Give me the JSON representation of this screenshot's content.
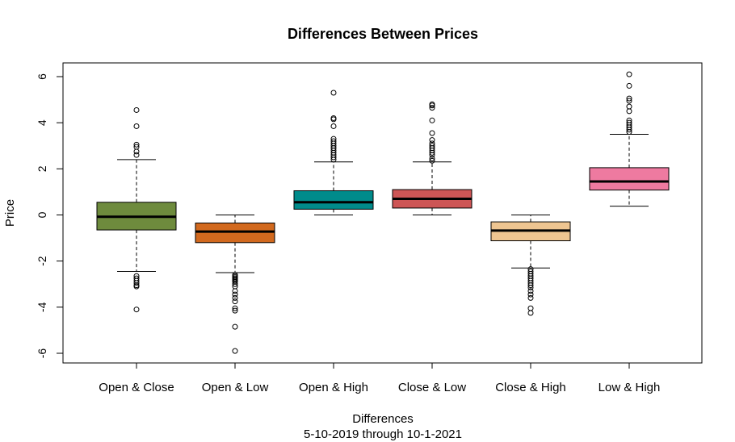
{
  "chart_data": {
    "type": "boxplot",
    "title": "Differences Between Prices",
    "xlabel": "Differences",
    "xsublabel": "5-10-2019 through 10-1-2021",
    "ylabel": "Price",
    "ylim": [
      -6.3,
      6.3
    ],
    "yticks": [
      -6,
      -4,
      -2,
      0,
      2,
      4,
      6
    ],
    "grid": false,
    "categories": [
      "Open & Close",
      "Open & Low",
      "Open & High",
      "Close & Low",
      "Close & High",
      "Low & High"
    ],
    "boxes": [
      {
        "label": "Open & Close",
        "color": "#6E8B3D",
        "q1": -0.65,
        "median": -0.08,
        "q3": 0.55,
        "whisker_low": -2.45,
        "whisker_high": 2.4,
        "outliers": [
          4.55,
          3.85,
          3.05,
          2.95,
          2.75,
          2.6,
          -2.65,
          -2.75,
          -2.85,
          -2.95,
          -3.05,
          -3.1,
          -4.1
        ]
      },
      {
        "label": "Open & Low",
        "color": "#D2691E",
        "q1": -1.2,
        "median": -0.72,
        "q3": -0.35,
        "whisker_low": -2.5,
        "whisker_high": 0.0,
        "outliers": [
          -2.6,
          -2.65,
          -2.7,
          -2.75,
          -2.8,
          -2.85,
          -2.9,
          -3.0,
          -3.1,
          -3.3,
          -3.45,
          -3.6,
          -3.75,
          -4.05,
          -4.15,
          -4.85,
          -5.9
        ]
      },
      {
        "label": "Open & High",
        "color": "#008B8B",
        "q1": 0.25,
        "median": 0.55,
        "q3": 1.05,
        "whisker_low": 0.0,
        "whisker_high": 2.3,
        "outliers": [
          2.4,
          2.5,
          2.6,
          2.7,
          2.8,
          2.9,
          3.0,
          3.1,
          3.2,
          3.3,
          3.85,
          4.15,
          4.2,
          5.3
        ]
      },
      {
        "label": "Close & Low",
        "color": "#CD5555",
        "q1": 0.3,
        "median": 0.7,
        "q3": 1.1,
        "whisker_low": 0.0,
        "whisker_high": 2.3,
        "outliers": [
          2.35,
          2.45,
          2.6,
          2.7,
          2.8,
          2.9,
          3.0,
          3.1,
          3.25,
          3.55,
          4.1,
          4.65,
          4.75,
          4.8
        ]
      },
      {
        "label": "Close & High",
        "color": "#EEC591",
        "q1": -1.12,
        "median": -0.68,
        "q3": -0.3,
        "whisker_low": -2.3,
        "whisker_high": 0.0,
        "outliers": [
          -2.35,
          -2.45,
          -2.55,
          -2.65,
          -2.75,
          -2.85,
          -2.95,
          -3.05,
          -3.15,
          -3.3,
          -3.45,
          -3.6,
          -4.05,
          -4.25
        ]
      },
      {
        "label": "Low & High",
        "color": "#EE7AA0",
        "q1": 1.08,
        "median": 1.45,
        "q3": 2.05,
        "whisker_low": 0.38,
        "whisker_high": 3.5,
        "outliers": [
          3.6,
          3.7,
          3.8,
          3.9,
          4.0,
          4.1,
          4.5,
          4.7,
          4.95,
          5.05,
          5.6,
          6.1
        ]
      }
    ]
  }
}
